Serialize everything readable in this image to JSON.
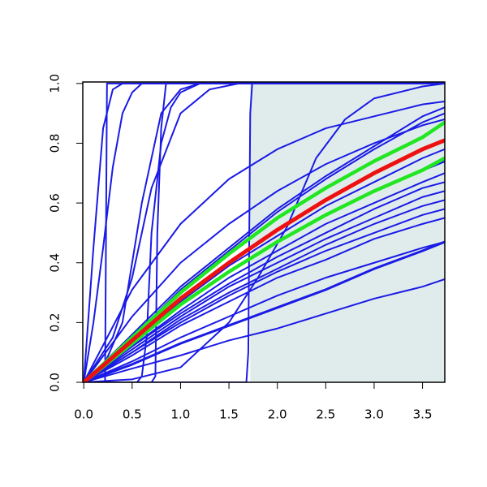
{
  "chart_data": {
    "type": "line",
    "xlim": [
      -0.01,
      3.73
    ],
    "ylim": [
      0,
      1.005
    ],
    "xticks": [
      {
        "value": 0,
        "label": "0.0"
      },
      {
        "value": 0.5,
        "label": "0.5"
      },
      {
        "value": 1,
        "label": "1.0"
      },
      {
        "value": 1.5,
        "label": "1.5"
      },
      {
        "value": 2,
        "label": "2.0"
      },
      {
        "value": 2.5,
        "label": "2.5"
      },
      {
        "value": 3,
        "label": "3.0"
      },
      {
        "value": 3.5,
        "label": "3.5"
      }
    ],
    "yticks": [
      {
        "value": 0,
        "label": "0.0"
      },
      {
        "value": 0.2,
        "label": "0.2"
      },
      {
        "value": 0.4,
        "label": "0.4"
      },
      {
        "value": 0.6,
        "label": "0.6"
      },
      {
        "value": 0.8,
        "label": "0.8"
      },
      {
        "value": 1,
        "label": "1.0"
      }
    ],
    "shaded_region": {
      "x": [
        1.72,
        3.73
      ],
      "color": "#e0ecec"
    },
    "series": [
      {
        "color": "#1a1ae6",
        "line_width": 2,
        "x": [
          0,
          0.22,
          0.24,
          3.73
        ],
        "values": [
          0,
          0,
          1,
          1
        ]
      },
      {
        "color": "#1a1ae6",
        "line_width": 2,
        "x": [
          0,
          0.7,
          0.74,
          0.76,
          0.8,
          0.85,
          3.73
        ],
        "values": [
          0,
          0,
          0.02,
          0.5,
          0.85,
          1,
          1
        ]
      },
      {
        "color": "#1a1ae6",
        "line_width": 2,
        "x": [
          0,
          1.68,
          1.7,
          1.72,
          1.74,
          3.73
        ],
        "values": [
          0,
          0,
          0.1,
          0.9,
          1,
          1
        ]
      },
      {
        "color": "#1a1ae6",
        "line_width": 2,
        "x": [
          0,
          0.1,
          0.2,
          0.3,
          0.4,
          3.73
        ],
        "values": [
          0,
          0.45,
          0.85,
          0.98,
          1,
          1
        ]
      },
      {
        "color": "#1a1ae6",
        "line_width": 2,
        "x": [
          0,
          0.1,
          0.2,
          0.3,
          0.4,
          0.5,
          0.6,
          3.73
        ],
        "values": [
          0,
          0.2,
          0.45,
          0.72,
          0.9,
          0.97,
          1,
          1
        ]
      },
      {
        "color": "#1a1ae6",
        "line_width": 2,
        "x": [
          0,
          0.2,
          0.4,
          0.6,
          0.8,
          1.0,
          1.2,
          3.73
        ],
        "values": [
          0,
          0.05,
          0.2,
          0.6,
          0.9,
          0.98,
          1,
          1
        ]
      },
      {
        "color": "#1a1ae6",
        "line_width": 2,
        "x": [
          0,
          0.55,
          0.6,
          0.65,
          0.7,
          0.8,
          0.9,
          1.0,
          1.2,
          3.73
        ],
        "values": [
          0,
          0,
          0.02,
          0.15,
          0.5,
          0.8,
          0.92,
          0.97,
          1,
          1
        ]
      },
      {
        "color": "#1a1ae6",
        "line_width": 2,
        "x": [
          0,
          0.3,
          0.5,
          0.7,
          1.0,
          1.3,
          1.6,
          3.73
        ],
        "values": [
          0,
          0.15,
          0.35,
          0.65,
          0.9,
          0.98,
          1,
          1
        ]
      },
      {
        "color": "#1a1ae6",
        "line_width": 2,
        "x": [
          0,
          0.5,
          1.0,
          1.5,
          1.8,
          2.1,
          2.4,
          2.7,
          3.0,
          3.5,
          3.73
        ],
        "values": [
          0,
          0.01,
          0.05,
          0.2,
          0.35,
          0.52,
          0.75,
          0.88,
          0.95,
          0.99,
          1
        ]
      },
      {
        "color": "#1a1ae6",
        "line_width": 2,
        "x": [
          0,
          0.5,
          1,
          1.5,
          2,
          2.5,
          3,
          3.5,
          3.73
        ],
        "values": [
          0,
          0.31,
          0.53,
          0.68,
          0.78,
          0.85,
          0.89,
          0.93,
          0.94
        ]
      },
      {
        "color": "#1a1ae6",
        "line_width": 2,
        "x": [
          0,
          0.5,
          1,
          1.5,
          2,
          2.5,
          3,
          3.5,
          3.73
        ],
        "values": [
          0,
          0.22,
          0.4,
          0.53,
          0.64,
          0.73,
          0.8,
          0.86,
          0.88
        ]
      },
      {
        "color": "#1a1ae6",
        "line_width": 2,
        "x": [
          0,
          0.5,
          1,
          1.5,
          2,
          2.5,
          3,
          3.5,
          3.73
        ],
        "values": [
          0,
          0.16,
          0.32,
          0.45,
          0.58,
          0.69,
          0.79,
          0.89,
          0.92
        ]
      },
      {
        "color": "#1a1ae6",
        "line_width": 2,
        "x": [
          0,
          0.5,
          1,
          1.5,
          2,
          2.5,
          3,
          3.5,
          3.73
        ],
        "values": [
          0,
          0.15,
          0.31,
          0.44,
          0.57,
          0.68,
          0.78,
          0.87,
          0.9
        ]
      },
      {
        "color": "#1a1ae6",
        "line_width": 2,
        "x": [
          0,
          0.5,
          1,
          1.5,
          2,
          2.5,
          3,
          3.5,
          3.73
        ],
        "values": [
          0,
          0.13,
          0.27,
          0.39,
          0.49,
          0.59,
          0.67,
          0.75,
          0.78
        ]
      },
      {
        "color": "#1a1ae6",
        "line_width": 3,
        "x": [
          0,
          0.5,
          1,
          1.5,
          2,
          2.5,
          3,
          3.5,
          3.73
        ],
        "values": [
          0,
          0.13,
          0.26,
          0.37,
          0.47,
          0.56,
          0.64,
          0.71,
          0.74
        ]
      },
      {
        "color": "#1a1ae6",
        "line_width": 2,
        "x": [
          0,
          0.5,
          1,
          1.5,
          2,
          2.5,
          3,
          3.5,
          3.73
        ],
        "values": [
          0,
          0.12,
          0.24,
          0.35,
          0.44,
          0.53,
          0.6,
          0.67,
          0.7
        ]
      },
      {
        "color": "#1a1ae6",
        "line_width": 2,
        "x": [
          0,
          0.5,
          1,
          1.5,
          2,
          2.5,
          3,
          3.5,
          3.73
        ],
        "values": [
          0,
          0.12,
          0.23,
          0.33,
          0.42,
          0.5,
          0.58,
          0.65,
          0.67
        ]
      },
      {
        "color": "#1a1ae6",
        "line_width": 2,
        "x": [
          0,
          0.5,
          1,
          1.5,
          2,
          2.5,
          3,
          3.5,
          3.73
        ],
        "values": [
          0,
          0.11,
          0.22,
          0.32,
          0.4,
          0.48,
          0.55,
          0.62,
          0.64
        ]
      },
      {
        "color": "#1a1ae6",
        "line_width": 2,
        "x": [
          0,
          0.5,
          1,
          1.5,
          2,
          2.5,
          3,
          3.5,
          3.73
        ],
        "values": [
          0,
          0.1,
          0.21,
          0.3,
          0.38,
          0.46,
          0.53,
          0.59,
          0.61
        ]
      },
      {
        "color": "#1a1ae6",
        "line_width": 2,
        "x": [
          0,
          0.5,
          1,
          1.5,
          2,
          2.5,
          3,
          3.5,
          3.73
        ],
        "values": [
          0,
          0.1,
          0.2,
          0.29,
          0.37,
          0.44,
          0.5,
          0.56,
          0.58
        ]
      },
      {
        "color": "#1a1ae6",
        "line_width": 2,
        "x": [
          0,
          0.5,
          1,
          1.5,
          2,
          2.5,
          3,
          3.5,
          3.73
        ],
        "values": [
          0,
          0.09,
          0.19,
          0.27,
          0.35,
          0.41,
          0.48,
          0.53,
          0.55
        ]
      },
      {
        "color": "#1a1ae6",
        "line_width": 2,
        "x": [
          0,
          0.5,
          1,
          1.5,
          2,
          2.5,
          3,
          3.5,
          3.73
        ],
        "values": [
          0,
          0.07,
          0.15,
          0.22,
          0.29,
          0.35,
          0.4,
          0.45,
          0.47
        ]
      },
      {
        "color": "#1a1ae6",
        "line_width": 3,
        "x": [
          0,
          0.5,
          1,
          1.5,
          2,
          2.5,
          3,
          3.5,
          3.73
        ],
        "values": [
          0,
          0.06,
          0.13,
          0.19,
          0.25,
          0.31,
          0.38,
          0.44,
          0.47
        ]
      },
      {
        "color": "#1a1ae6",
        "line_width": 2,
        "x": [
          0,
          0.5,
          1,
          1.5,
          2,
          2.5,
          3,
          3.5,
          3.73
        ],
        "values": [
          0,
          0.046,
          0.09,
          0.14,
          0.18,
          0.23,
          0.28,
          0.32,
          0.345
        ]
      },
      {
        "color": "#22e622",
        "line_width": 4.5,
        "x": [
          0,
          0.5,
          1,
          1.5,
          2,
          2.5,
          3,
          3.5,
          3.73
        ],
        "values": [
          0,
          0.15,
          0.3,
          0.43,
          0.55,
          0.65,
          0.74,
          0.82,
          0.87
        ]
      },
      {
        "color": "#22e622",
        "line_width": 4.5,
        "x": [
          0,
          0.5,
          1,
          1.5,
          2,
          2.5,
          3,
          3.5,
          3.73
        ],
        "values": [
          0,
          0.13,
          0.26,
          0.37,
          0.47,
          0.56,
          0.64,
          0.71,
          0.75
        ]
      },
      {
        "color": "#ee1111",
        "line_width": 5,
        "x": [
          0,
          0.5,
          1,
          1.5,
          2,
          2.5,
          3,
          3.5,
          3.73
        ],
        "values": [
          0,
          0.14,
          0.28,
          0.4,
          0.51,
          0.61,
          0.7,
          0.78,
          0.81
        ]
      }
    ]
  }
}
